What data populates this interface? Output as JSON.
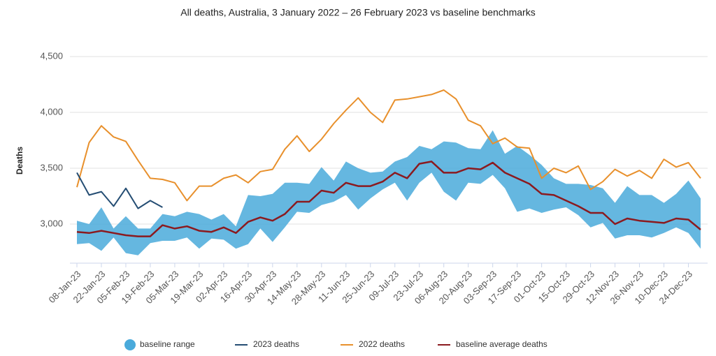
{
  "chart_data": {
    "type": "line",
    "title": "All deaths, Australia, 3 January 2022 – 26 February 2023 vs baseline benchmarks",
    "y_label": "Deaths",
    "categories": [
      "08-Jan-23",
      null,
      "22-Jan-23",
      null,
      "05-Feb-23",
      null,
      "19-Feb-23",
      null,
      "05-Mar-23",
      null,
      "19-Mar-23",
      null,
      "02-Apr-23",
      null,
      "16-Apr-23",
      null,
      "30-Apr-23",
      null,
      "14-May-23",
      null,
      "28-May-23",
      null,
      "11-Jun-23",
      null,
      "25-Jun-23",
      null,
      "09-Jul-23",
      null,
      "23-Jul-23",
      null,
      "06-Aug-23",
      null,
      "20-Aug-23",
      null,
      "03-Sep-23",
      null,
      "17-Sep-23",
      null,
      "01-Oct-23",
      null,
      "15-Oct-23",
      null,
      "29-Oct-23",
      null,
      "12-Nov-23",
      null,
      "26-Nov-23",
      null,
      "10-Dec-23",
      null,
      "24-Dec-23",
      null
    ],
    "ylim": [
      2650,
      4500
    ],
    "yticks": [
      {
        "value": 3000,
        "label": "3,000"
      },
      {
        "value": 3500,
        "label": "3,500"
      },
      {
        "value": 4000,
        "label": "4,000"
      },
      {
        "value": 4500,
        "label": "4,500"
      }
    ],
    "grid": true,
    "legend": "bottom",
    "range": {
      "name": "baseline range",
      "color": "#4aaadb",
      "high": [
        3030,
        3000,
        3150,
        2960,
        3070,
        2960,
        2960,
        3090,
        3070,
        3110,
        3090,
        3040,
        3090,
        2980,
        3260,
        3250,
        3270,
        3370,
        3370,
        3360,
        3510,
        3390,
        3560,
        3500,
        3460,
        3470,
        3560,
        3600,
        3700,
        3670,
        3740,
        3730,
        3680,
        3670,
        3840,
        3630,
        3700,
        3620,
        3530,
        3410,
        3360,
        3360,
        3350,
        3320,
        3190,
        3340,
        3260,
        3260,
        3190,
        3270,
        3390,
        3230
      ],
      "low": [
        2820,
        2830,
        2760,
        2880,
        2740,
        2720,
        2830,
        2850,
        2850,
        2880,
        2780,
        2870,
        2860,
        2780,
        2820,
        2960,
        2840,
        2970,
        3110,
        3100,
        3170,
        3200,
        3260,
        3130,
        3230,
        3310,
        3370,
        3210,
        3370,
        3460,
        3290,
        3210,
        3370,
        3360,
        3440,
        3320,
        3110,
        3140,
        3100,
        3130,
        3150,
        3080,
        2970,
        3010,
        2870,
        2900,
        2900,
        2880,
        2920,
        2970,
        2920,
        2780
      ]
    },
    "series": [
      {
        "name": "2023 deaths",
        "color": "#244d73",
        "values": [
          3460,
          3260,
          3290,
          3160,
          3320,
          3140,
          3210,
          3150,
          null,
          null,
          null,
          null,
          null,
          null,
          null,
          null,
          null,
          null,
          null,
          null,
          null,
          null,
          null,
          null,
          null,
          null,
          null,
          null,
          null,
          null,
          null,
          null,
          null,
          null,
          null,
          null,
          null,
          null,
          null,
          null,
          null,
          null,
          null,
          null,
          null,
          null,
          null,
          null,
          null,
          null,
          null,
          null
        ]
      },
      {
        "name": "2022 deaths",
        "color": "#e8902c",
        "values": [
          3330,
          3730,
          3880,
          3780,
          3740,
          3570,
          3410,
          3400,
          3370,
          3210,
          3340,
          3340,
          3410,
          3440,
          3370,
          3470,
          3490,
          3670,
          3790,
          3650,
          3760,
          3900,
          4020,
          4130,
          4000,
          3910,
          4110,
          4120,
          4140,
          4160,
          4200,
          4120,
          3930,
          3880,
          3720,
          3770,
          3690,
          3680,
          3410,
          3500,
          3460,
          3520,
          3310,
          3380,
          3490,
          3430,
          3480,
          3410,
          3580,
          3510,
          3550,
          3410
        ]
      },
      {
        "name": "baseline average deaths",
        "color": "#8b1a1f",
        "values": [
          2930,
          2920,
          2940,
          2920,
          2900,
          2890,
          2890,
          2990,
          2960,
          2980,
          2940,
          2930,
          2970,
          2920,
          3020,
          3060,
          3030,
          3090,
          3200,
          3200,
          3300,
          3280,
          3370,
          3340,
          3340,
          3380,
          3460,
          3410,
          3540,
          3560,
          3460,
          3460,
          3500,
          3490,
          3550,
          3460,
          3410,
          3360,
          3270,
          3260,
          3210,
          3160,
          3100,
          3100,
          3000,
          3050,
          3030,
          3020,
          3010,
          3050,
          3040,
          2950
        ]
      }
    ]
  }
}
